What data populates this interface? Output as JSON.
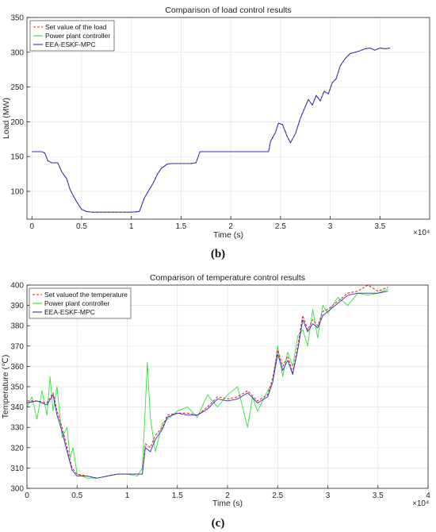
{
  "chart_data": [
    {
      "type": "line",
      "title": "Comparison of load control results",
      "xlabel": "Time (s)",
      "ylabel": "Load (MW)",
      "xlim": [
        -500,
        40000
      ],
      "ylim": [
        60,
        350
      ],
      "xticks": [
        0,
        5000,
        10000,
        15000,
        20000,
        25000,
        30000,
        35000
      ],
      "xtick_labels": [
        "0",
        "0.5",
        "1",
        "1.5",
        "2",
        "2.5",
        "3",
        "3.5"
      ],
      "yticks": [
        100,
        150,
        200,
        250,
        300,
        350
      ],
      "exponent_label": "×10⁴",
      "grid": true,
      "legend_position": "top-left",
      "caption": "(b)",
      "series": [
        {
          "name": "Set value of the load",
          "color": "#e8272b",
          "style": "dashed",
          "x": [
            0,
            500,
            1000,
            1300,
            1600,
            2000,
            2600,
            3000,
            3500,
            3800,
            4000,
            4500,
            5000,
            5500,
            6000,
            7000,
            8000,
            9000,
            10000,
            10800,
            11000,
            11300,
            11700,
            12200,
            12600,
            13000,
            13600,
            14000,
            15000,
            16000,
            16500,
            16900,
            17500,
            18000,
            19000,
            20000,
            21000,
            22000,
            23000,
            23800,
            24000,
            24500,
            24800,
            25200,
            25700,
            26000,
            26500,
            27000,
            27500,
            27800,
            28200,
            28600,
            29000,
            29400,
            29800,
            30200,
            30600,
            31000,
            31500,
            32000,
            32500,
            33000,
            33500,
            34000,
            34500,
            35000,
            35500,
            36000
          ],
          "y": [
            157,
            157,
            157,
            155,
            144,
            141,
            141,
            128,
            118,
            104,
            98,
            85,
            74,
            71,
            70,
            70,
            70,
            70,
            70,
            71,
            78,
            90,
            100,
            112,
            124,
            133,
            139,
            140,
            140,
            140,
            141,
            157,
            157,
            157,
            157,
            157,
            157,
            157,
            157,
            157,
            172,
            185,
            198,
            196,
            178,
            170,
            183,
            205,
            222,
            232,
            224,
            238,
            230,
            244,
            240,
            256,
            262,
            280,
            291,
            298,
            300,
            302,
            305,
            306,
            303,
            306,
            305,
            306
          ]
        },
        {
          "name": "Power plant controller",
          "color": "#33e03f",
          "style": "solid",
          "x": [
            0,
            500,
            1000,
            1300,
            1600,
            2000,
            2600,
            3000,
            3500,
            3800,
            4000,
            4500,
            5000,
            5500,
            6000,
            7000,
            8000,
            9000,
            10000,
            10800,
            11000,
            11300,
            11700,
            12200,
            12600,
            13000,
            13600,
            14000,
            15000,
            16000,
            16500,
            16900,
            17500,
            18000,
            19000,
            20000,
            21000,
            22000,
            23000,
            23800,
            24000,
            24500,
            24800,
            25200,
            25700,
            26000,
            26500,
            27000,
            27500,
            27800,
            28200,
            28600,
            29000,
            29400,
            29800,
            30200,
            30600,
            31000,
            31500,
            32000,
            32500,
            33000,
            33500,
            34000,
            34500,
            35000,
            35500,
            36000
          ],
          "y": [
            157,
            157,
            157,
            155,
            144,
            141,
            141,
            128,
            118,
            104,
            98,
            85,
            74,
            71,
            70,
            70,
            70,
            70,
            70,
            71,
            78,
            90,
            100,
            112,
            124,
            133,
            139,
            140,
            140,
            140,
            141,
            157,
            157,
            157,
            157,
            157,
            157,
            157,
            157,
            157,
            172,
            185,
            198,
            196,
            178,
            170,
            183,
            205,
            222,
            232,
            224,
            238,
            230,
            244,
            240,
            256,
            262,
            280,
            291,
            298,
            300,
            302,
            305,
            306,
            303,
            306,
            305,
            306
          ]
        },
        {
          "name": "EEA-ESKF-MPC",
          "color": "#2b2fc8",
          "style": "solid",
          "x": [
            0,
            500,
            1000,
            1300,
            1600,
            2000,
            2600,
            3000,
            3500,
            3800,
            4000,
            4500,
            5000,
            5500,
            6000,
            7000,
            8000,
            9000,
            10000,
            10800,
            11000,
            11300,
            11700,
            12200,
            12600,
            13000,
            13600,
            14000,
            15000,
            16000,
            16500,
            16900,
            17500,
            18000,
            19000,
            20000,
            21000,
            22000,
            23000,
            23800,
            24000,
            24500,
            24800,
            25200,
            25700,
            26000,
            26500,
            27000,
            27500,
            27800,
            28200,
            28600,
            29000,
            29400,
            29800,
            30200,
            30600,
            31000,
            31500,
            32000,
            32500,
            33000,
            33500,
            34000,
            34500,
            35000,
            35500,
            36000
          ],
          "y": [
            157,
            157,
            157,
            155,
            144,
            141,
            141,
            128,
            118,
            104,
            98,
            85,
            74,
            71,
            70,
            70,
            70,
            70,
            70,
            71,
            78,
            90,
            100,
            112,
            124,
            133,
            139,
            140,
            140,
            140,
            141,
            157,
            157,
            157,
            157,
            157,
            157,
            157,
            157,
            157,
            172,
            185,
            198,
            196,
            178,
            170,
            183,
            205,
            222,
            232,
            224,
            238,
            230,
            244,
            240,
            256,
            262,
            280,
            291,
            298,
            300,
            302,
            305,
            306,
            303,
            306,
            305,
            306
          ]
        }
      ]
    },
    {
      "type": "line",
      "title": "Comparison of temperature control results",
      "xlabel": "Time (s)",
      "ylabel": "Temperature (℃)",
      "xlim": [
        0,
        40000
      ],
      "ylim": [
        300,
        400
      ],
      "xticks": [
        0,
        5000,
        10000,
        15000,
        20000,
        25000,
        30000,
        35000,
        40000
      ],
      "xtick_labels": [
        "0",
        "0.5",
        "1",
        "1.5",
        "2",
        "2.5",
        "3",
        "3.5",
        "4"
      ],
      "yticks": [
        300,
        310,
        320,
        330,
        340,
        350,
        360,
        370,
        380,
        390,
        400
      ],
      "exponent_label": "×10⁴",
      "grid": true,
      "legend_position": "top-left",
      "caption": "(c)",
      "series": [
        {
          "name": "Set valueof the temperature",
          "color": "#e8272b",
          "style": "dashed",
          "x": [
            0,
            1000,
            2000,
            2600,
            3000,
            3500,
            4000,
            4500,
            5000,
            6000,
            7000,
            8000,
            9000,
            10000,
            11000,
            11500,
            11800,
            12300,
            12800,
            13500,
            14000,
            15000,
            16000,
            17000,
            18000,
            19000,
            20000,
            21000,
            22000,
            23000,
            24000,
            24500,
            25000,
            25500,
            26000,
            26500,
            27000,
            27500,
            28000,
            28500,
            29000,
            29500,
            30000,
            31000,
            32000,
            33000,
            34000,
            35000,
            36000
          ],
          "y": [
            343,
            343,
            342,
            347,
            338,
            330,
            320,
            310,
            307,
            306,
            305,
            306,
            307,
            307,
            307,
            307,
            322,
            320,
            326,
            330,
            336,
            337,
            337,
            336,
            340,
            345,
            344,
            345,
            348,
            343,
            346,
            354,
            368,
            360,
            365,
            357,
            370,
            385,
            378,
            383,
            380,
            387,
            388,
            392,
            396,
            397,
            400,
            397,
            399
          ]
        },
        {
          "name": "Power plant controller",
          "color": "#33e03f",
          "style": "solid",
          "x": [
            0,
            500,
            1000,
            1500,
            2000,
            2300,
            2600,
            3000,
            3500,
            4000,
            4300,
            4600,
            5000,
            5500,
            6000,
            7000,
            8000,
            9000,
            10000,
            11000,
            11500,
            11800,
            12000,
            12300,
            12800,
            13500,
            14000,
            15000,
            16000,
            17000,
            18000,
            19000,
            20000,
            21000,
            22000,
            22500,
            23000,
            24000,
            24500,
            25000,
            25500,
            26000,
            26500,
            27000,
            27500,
            28000,
            28500,
            29000,
            29500,
            30000,
            31000,
            32000,
            33000,
            34000,
            35000,
            36000
          ],
          "y": [
            340,
            345,
            334,
            348,
            336,
            355,
            338,
            350,
            325,
            330,
            315,
            320,
            307,
            306,
            305,
            305,
            306,
            307,
            307,
            306,
            310,
            340,
            362,
            335,
            318,
            332,
            334,
            338,
            340,
            335,
            346,
            340,
            346,
            350,
            330,
            345,
            338,
            348,
            352,
            370,
            355,
            367,
            360,
            375,
            378,
            370,
            388,
            374,
            390,
            386,
            394,
            390,
            396,
            395,
            396,
            398
          ]
        },
        {
          "name": "EEA-ESKF-MPC",
          "color": "#2b2fc8",
          "style": "solid",
          "x": [
            0,
            1000,
            2000,
            2600,
            3000,
            3500,
            4000,
            4500,
            5000,
            6000,
            7000,
            8000,
            9000,
            10000,
            11000,
            11500,
            11800,
            12300,
            12800,
            13500,
            14000,
            15000,
            16000,
            17000,
            18000,
            19000,
            20000,
            21000,
            22000,
            23000,
            24000,
            24500,
            25000,
            25500,
            26000,
            26500,
            27000,
            27500,
            28000,
            28500,
            29000,
            29500,
            30000,
            31000,
            32000,
            33000,
            34000,
            35000,
            36000
          ],
          "y": [
            342,
            343,
            341,
            346,
            336,
            328,
            318,
            309,
            306,
            306,
            305,
            306,
            307,
            307,
            307,
            307,
            320,
            318,
            324,
            329,
            335,
            337,
            336,
            336,
            339,
            344,
            343,
            344,
            347,
            342,
            345,
            352,
            366,
            358,
            363,
            356,
            368,
            383,
            377,
            381,
            379,
            385,
            387,
            391,
            395,
            396,
            396,
            396,
            397
          ]
        }
      ]
    }
  ]
}
